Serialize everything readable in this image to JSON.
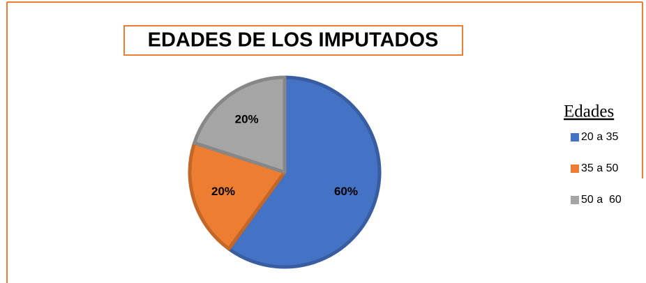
{
  "chart_data": {
    "type": "pie",
    "title": "EDADES DE LOS IMPUTADOS",
    "legend_title": "Edades",
    "legend": "right",
    "categories": [
      "20 a 35",
      "35 a 50",
      "50 a  60"
    ],
    "values": [
      60,
      20,
      20
    ],
    "value_labels": [
      "60%",
      "20%",
      "20%"
    ],
    "colors": [
      "#4472c4",
      "#ed7d31",
      "#a5a5a5"
    ]
  }
}
